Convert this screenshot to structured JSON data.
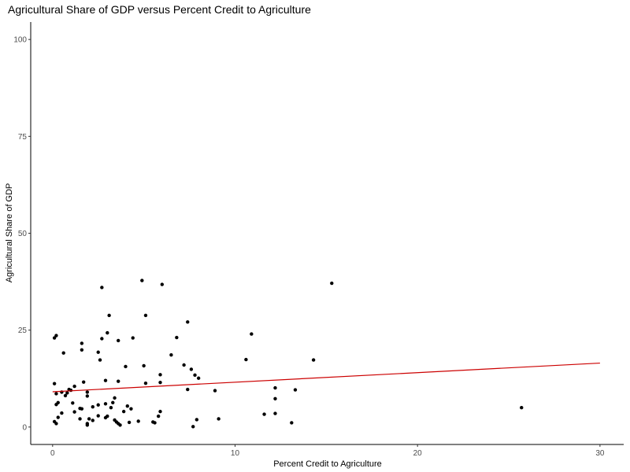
{
  "chart_data": {
    "type": "scatter",
    "title": "Agricultural Share of GDP versus Percent Credit to Agriculture",
    "xlabel": "Percent Credit to Agriculture",
    "ylabel": "Agricultural Share of GDP",
    "xlim": [
      -1.2,
      31.3
    ],
    "ylim": [
      -4.5,
      104.5
    ],
    "x_ticks": [
      0,
      10,
      20,
      30
    ],
    "y_ticks": [
      0,
      25,
      50,
      75,
      100
    ],
    "grid": false,
    "legend": "none",
    "point_color": "#000000",
    "line_color": "#cc0000",
    "series": [
      {
        "points": [
          [
            0.1,
            23.0
          ],
          [
            0.2,
            23.6
          ],
          [
            0.1,
            11.2
          ],
          [
            0.1,
            1.4
          ],
          [
            0.2,
            0.9
          ],
          [
            0.3,
            2.5
          ],
          [
            0.2,
            5.8
          ],
          [
            0.3,
            6.3
          ],
          [
            0.2,
            8.6
          ],
          [
            0.5,
            9.0
          ],
          [
            0.7,
            8.1
          ],
          [
            0.6,
            19.1
          ],
          [
            0.8,
            8.8
          ],
          [
            0.9,
            9.7
          ],
          [
            1.0,
            9.5
          ],
          [
            1.2,
            10.5
          ],
          [
            1.1,
            6.2
          ],
          [
            0.5,
            3.6
          ],
          [
            1.2,
            3.9
          ],
          [
            1.5,
            2.1
          ],
          [
            1.5,
            4.8
          ],
          [
            1.6,
            21.6
          ],
          [
            1.6,
            19.9
          ],
          [
            1.6,
            4.7
          ],
          [
            1.7,
            11.6
          ],
          [
            1.9,
            9.0
          ],
          [
            1.9,
            8.0
          ],
          [
            1.9,
            0.9
          ],
          [
            1.9,
            0.5
          ],
          [
            2.0,
            2.1
          ],
          [
            2.2,
            5.2
          ],
          [
            2.2,
            1.7
          ],
          [
            2.5,
            2.9
          ],
          [
            2.5,
            19.3
          ],
          [
            2.5,
            5.7
          ],
          [
            2.6,
            17.3
          ],
          [
            2.7,
            22.8
          ],
          [
            2.7,
            36.0
          ],
          [
            2.9,
            12.0
          ],
          [
            2.9,
            6.0
          ],
          [
            3.0,
            24.3
          ],
          [
            3.1,
            28.8
          ],
          [
            2.9,
            2.4
          ],
          [
            3.0,
            2.8
          ],
          [
            3.2,
            5.0
          ],
          [
            3.3,
            6.3
          ],
          [
            3.4,
            1.8
          ],
          [
            3.4,
            7.5
          ],
          [
            3.5,
            1.3
          ],
          [
            3.6,
            0.9
          ],
          [
            3.7,
            0.5
          ],
          [
            3.6,
            11.8
          ],
          [
            3.6,
            22.3
          ],
          [
            3.9,
            4.0
          ],
          [
            4.0,
            15.6
          ],
          [
            4.1,
            5.4
          ],
          [
            4.2,
            1.2
          ],
          [
            4.3,
            4.7
          ],
          [
            4.4,
            23.0
          ],
          [
            4.7,
            1.5
          ],
          [
            4.9,
            37.8
          ],
          [
            5.0,
            15.8
          ],
          [
            5.1,
            11.3
          ],
          [
            5.1,
            28.8
          ],
          [
            5.5,
            1.3
          ],
          [
            5.6,
            1.1
          ],
          [
            5.8,
            2.8
          ],
          [
            5.9,
            4.0
          ],
          [
            5.9,
            11.5
          ],
          [
            5.9,
            13.5
          ],
          [
            6.0,
            36.8
          ],
          [
            6.5,
            18.6
          ],
          [
            6.8,
            23.1
          ],
          [
            7.2,
            16.0
          ],
          [
            7.4,
            9.7
          ],
          [
            7.4,
            27.1
          ],
          [
            7.6,
            14.9
          ],
          [
            7.7,
            0.1
          ],
          [
            7.8,
            13.4
          ],
          [
            7.9,
            1.9
          ],
          [
            8.0,
            12.6
          ],
          [
            8.9,
            9.4
          ],
          [
            9.1,
            2.1
          ],
          [
            10.6,
            17.4
          ],
          [
            10.9,
            24.0
          ],
          [
            11.6,
            3.3
          ],
          [
            12.2,
            10.1
          ],
          [
            12.2,
            7.3
          ],
          [
            12.2,
            3.5
          ],
          [
            13.1,
            1.1
          ],
          [
            13.3,
            9.6
          ],
          [
            14.3,
            17.3
          ],
          [
            15.3,
            37.1
          ],
          [
            25.7,
            5.0
          ]
        ]
      }
    ],
    "trend_line": {
      "x": [
        0,
        30
      ],
      "y": [
        9.1,
        16.5
      ]
    }
  }
}
